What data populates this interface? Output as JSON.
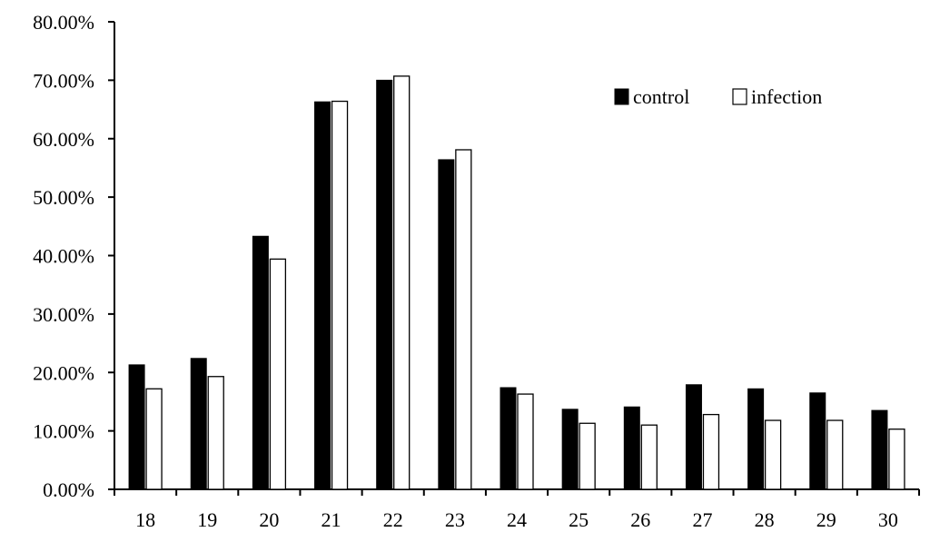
{
  "chart_data": {
    "type": "bar",
    "categories": [
      "18",
      "19",
      "20",
      "21",
      "22",
      "23",
      "24",
      "25",
      "26",
      "27",
      "28",
      "29",
      "30"
    ],
    "series": [
      {
        "name": "control",
        "color": "#000000",
        "values": [
          21.3,
          22.4,
          43.3,
          66.3,
          70.0,
          56.4,
          17.4,
          13.7,
          14.1,
          17.9,
          17.2,
          16.5,
          13.5
        ]
      },
      {
        "name": "infection",
        "color": "#ffffff",
        "values": [
          17.2,
          19.3,
          39.4,
          66.4,
          70.7,
          58.1,
          16.3,
          11.3,
          11.0,
          12.8,
          11.8,
          11.8,
          10.3
        ]
      }
    ],
    "ylim": [
      0,
      80
    ],
    "yticks": [
      "0.00%",
      "10.00%",
      "20.00%",
      "30.00%",
      "40.00%",
      "50.00%",
      "60.00%",
      "70.00%",
      "80.00%"
    ],
    "grid": false,
    "legend_position": "top-right"
  }
}
